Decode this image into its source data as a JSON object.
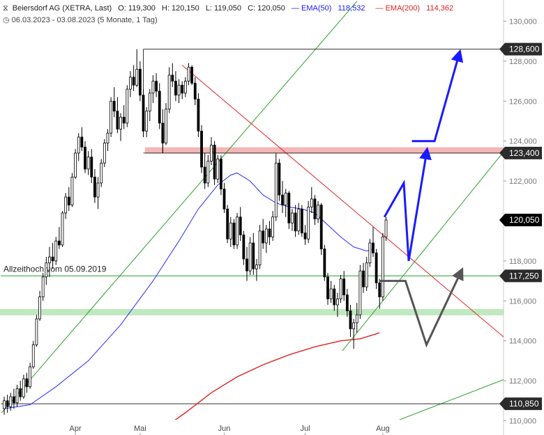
{
  "header": {
    "symbol": "Beiersdorf AG (XETRA, Last)",
    "open": "O: 119,300",
    "high": "H: 120,150",
    "low": "L: 119,050",
    "close": "C: 120,050",
    "ema50_label": "EMA(50)",
    "ema50_value": "118,532",
    "ema200_label": "EMA(200)",
    "ema200_value": "114,362",
    "range": "06.03.2023 - 03.08.2023",
    "period": "(5 Monate, 1 Tag)"
  },
  "chart_data": {
    "type": "candlestick",
    "ylim": [
      109.6,
      131.0
    ],
    "y_ticks": [
      110,
      112,
      114,
      116,
      118,
      120,
      122,
      124,
      126,
      128,
      130
    ],
    "y_tick_labels": [
      "110,000",
      "112,000",
      "114,000",
      "116,000",
      "118,000",
      "120,000",
      "122,000",
      "124,000",
      "126,000",
      "128,000",
      "130,000"
    ],
    "x_labels": [
      {
        "label": "Apr",
        "date": "2023-04-03"
      },
      {
        "label": "Mai",
        "date": "2023-05-02"
      },
      {
        "label": "Jun",
        "date": "2023-06-01"
      },
      {
        "label": "Jul",
        "date": "2023-07-03"
      },
      {
        "label": "Aug",
        "date": "2023-08-01"
      }
    ],
    "price_levels": [
      {
        "value": 128.6,
        "label": "128,600",
        "style": "dark"
      },
      {
        "value": 123.4,
        "label": "123,400",
        "style": "dark"
      },
      {
        "value": 120.05,
        "label": "120,050",
        "style": "black"
      },
      {
        "value": 117.25,
        "label": "117,250",
        "style": "dark"
      },
      {
        "value": 110.85,
        "label": "110,850",
        "style": "dark"
      }
    ],
    "zones": [
      {
        "from": 123.25,
        "to": 123.55,
        "color": "#f4b6b6"
      },
      {
        "from": 115.15,
        "to": 115.45,
        "color": "#bfe9bf"
      }
    ],
    "annotations": [
      {
        "text": "Allzeithoch vom 05.09.2019",
        "value": 117.25
      }
    ],
    "candles": [
      [
        110.6,
        111.2,
        110.3,
        111.0
      ],
      [
        111.0,
        111.3,
        110.4,
        110.7
      ],
      [
        110.7,
        111.4,
        110.5,
        111.2
      ],
      [
        111.2,
        111.6,
        110.6,
        110.9
      ],
      [
        110.9,
        111.8,
        110.7,
        111.6
      ],
      [
        111.6,
        112.0,
        111.0,
        111.2
      ],
      [
        111.2,
        112.3,
        111.1,
        112.1
      ],
      [
        112.1,
        112.4,
        111.4,
        111.7
      ],
      [
        111.7,
        112.9,
        111.6,
        112.7
      ],
      [
        112.7,
        114.0,
        112.6,
        113.8
      ],
      [
        113.8,
        115.3,
        113.7,
        115.1
      ],
      [
        115.1,
        116.5,
        115.0,
        116.2
      ],
      [
        116.2,
        117.4,
        116.0,
        117.2
      ],
      [
        117.2,
        118.2,
        116.8,
        117.9
      ],
      [
        117.9,
        118.7,
        117.2,
        118.2
      ],
      [
        118.2,
        118.9,
        117.6,
        118.0
      ],
      [
        118.0,
        119.2,
        117.8,
        119.0
      ],
      [
        119.0,
        119.7,
        118.6,
        118.8
      ],
      [
        118.8,
        120.5,
        118.7,
        120.4
      ],
      [
        120.4,
        121.4,
        120.1,
        121.2
      ],
      [
        121.2,
        121.7,
        120.5,
        120.8
      ],
      [
        120.8,
        122.4,
        120.7,
        122.2
      ],
      [
        122.2,
        123.6,
        122.1,
        123.4
      ],
      [
        123.4,
        124.4,
        123.0,
        124.2
      ],
      [
        124.2,
        124.7,
        123.5,
        123.7
      ],
      [
        123.7,
        124.0,
        122.4,
        122.6
      ],
      [
        122.6,
        123.5,
        122.3,
        123.2
      ],
      [
        123.2,
        123.6,
        121.9,
        122.2
      ],
      [
        122.2,
        122.6,
        120.9,
        121.2
      ],
      [
        121.2,
        122.2,
        120.6,
        121.9
      ],
      [
        121.9,
        123.1,
        121.7,
        122.9
      ],
      [
        122.9,
        124.1,
        122.7,
        123.9
      ],
      [
        123.9,
        124.6,
        123.5,
        124.4
      ],
      [
        124.4,
        126.2,
        124.2,
        126.0
      ],
      [
        126.0,
        126.7,
        125.2,
        125.5
      ],
      [
        125.5,
        126.2,
        124.4,
        124.6
      ],
      [
        124.6,
        125.4,
        124.0,
        125.2
      ],
      [
        125.2,
        125.8,
        124.6,
        124.9
      ],
      [
        124.9,
        126.8,
        124.7,
        126.6
      ],
      [
        126.6,
        127.5,
        126.2,
        127.2
      ],
      [
        127.2,
        127.8,
        126.5,
        126.8
      ],
      [
        126.8,
        128.6,
        126.7,
        127.6
      ],
      [
        127.6,
        128.0,
        126.0,
        126.3
      ],
      [
        126.3,
        126.6,
        124.2,
        124.5
      ],
      [
        124.5,
        125.7,
        124.2,
        125.5
      ],
      [
        125.5,
        126.6,
        125.0,
        126.4
      ],
      [
        126.4,
        127.3,
        125.9,
        127.0
      ],
      [
        127.0,
        127.4,
        126.2,
        126.5
      ],
      [
        126.5,
        126.9,
        124.6,
        124.9
      ],
      [
        124.9,
        125.6,
        123.4,
        123.9
      ],
      [
        123.9,
        125.9,
        123.8,
        125.6
      ],
      [
        125.6,
        127.7,
        125.4,
        127.3
      ],
      [
        127.3,
        127.9,
        126.7,
        127.0
      ],
      [
        127.0,
        127.5,
        126.0,
        126.3
      ],
      [
        126.3,
        127.1,
        125.9,
        126.8
      ],
      [
        126.8,
        127.0,
        126.1,
        126.4
      ],
      [
        126.4,
        127.2,
        126.2,
        127.0
      ],
      [
        127.0,
        127.9,
        126.8,
        127.7
      ],
      [
        127.7,
        127.8,
        126.8,
        126.9
      ],
      [
        126.9,
        127.2,
        125.8,
        126.1
      ],
      [
        126.1,
        126.4,
        124.2,
        124.5
      ],
      [
        124.5,
        124.8,
        122.4,
        122.7
      ],
      [
        122.7,
        123.4,
        121.6,
        121.9
      ],
      [
        121.9,
        123.3,
        121.7,
        123.0
      ],
      [
        123.0,
        124.2,
        122.8,
        123.8
      ],
      [
        123.8,
        124.0,
        121.8,
        122.1
      ],
      [
        122.1,
        123.3,
        121.9,
        123.1
      ],
      [
        123.1,
        123.3,
        121.3,
        121.6
      ],
      [
        121.6,
        121.9,
        120.4,
        120.6
      ],
      [
        120.6,
        120.8,
        118.9,
        119.1
      ],
      [
        119.1,
        120.2,
        118.7,
        119.9
      ],
      [
        119.9,
        120.1,
        118.6,
        118.8
      ],
      [
        118.8,
        120.4,
        118.6,
        120.2
      ],
      [
        120.2,
        120.7,
        119.0,
        119.3
      ],
      [
        119.3,
        119.5,
        117.8,
        118.1
      ],
      [
        118.1,
        118.7,
        117.0,
        117.5
      ],
      [
        117.5,
        119.2,
        117.3,
        118.9
      ],
      [
        118.9,
        119.4,
        117.3,
        117.6
      ],
      [
        117.6,
        118.1,
        117.0,
        117.8
      ],
      [
        117.8,
        119.8,
        117.6,
        119.5
      ],
      [
        119.5,
        120.1,
        118.6,
        118.9
      ],
      [
        118.9,
        119.8,
        118.4,
        119.6
      ],
      [
        119.6,
        120.0,
        118.8,
        119.2
      ],
      [
        119.2,
        120.5,
        119.0,
        120.2
      ],
      [
        120.2,
        123.4,
        120.0,
        122.9
      ],
      [
        122.9,
        123.1,
        121.0,
        121.3
      ],
      [
        121.3,
        122.0,
        120.4,
        120.8
      ],
      [
        120.8,
        121.6,
        120.2,
        121.4
      ],
      [
        121.4,
        121.5,
        119.6,
        119.9
      ],
      [
        119.9,
        120.6,
        119.5,
        120.4
      ],
      [
        120.4,
        120.8,
        119.2,
        119.5
      ],
      [
        119.5,
        120.9,
        119.3,
        120.6
      ],
      [
        120.6,
        120.8,
        119.2,
        119.4
      ],
      [
        119.4,
        119.8,
        118.8,
        119.1
      ],
      [
        119.1,
        121.0,
        118.9,
        120.7
      ],
      [
        120.7,
        121.7,
        120.4,
        121.1
      ],
      [
        121.1,
        121.3,
        119.8,
        120.1
      ],
      [
        120.1,
        121.0,
        119.9,
        120.8
      ],
      [
        120.8,
        120.9,
        118.3,
        118.6
      ],
      [
        118.6,
        118.8,
        117.0,
        117.2
      ],
      [
        117.2,
        117.4,
        115.8,
        116.1
      ],
      [
        116.1,
        117.0,
        115.9,
        116.6
      ],
      [
        116.6,
        116.8,
        115.5,
        115.8
      ],
      [
        115.8,
        116.4,
        115.2,
        116.1
      ],
      [
        116.1,
        117.3,
        115.9,
        117.1
      ],
      [
        117.1,
        117.5,
        116.0,
        116.3
      ],
      [
        116.3,
        116.6,
        115.2,
        115.5
      ],
      [
        115.5,
        115.8,
        114.2,
        114.6
      ],
      [
        114.6,
        115.1,
        113.6,
        114.9
      ],
      [
        114.9,
        115.9,
        114.4,
        115.3
      ],
      [
        115.3,
        117.8,
        115.1,
        117.5
      ],
      [
        117.5,
        117.9,
        116.4,
        116.7
      ],
      [
        116.7,
        118.2,
        116.5,
        117.9
      ],
      [
        117.9,
        119.1,
        117.7,
        118.9
      ],
      [
        118.9,
        119.7,
        118.2,
        118.4
      ],
      [
        118.4,
        118.6,
        116.6,
        116.9
      ],
      [
        116.9,
        117.1,
        115.6,
        116.2
      ],
      [
        116.2,
        119.4,
        116.0,
        119.2
      ],
      [
        119.2,
        120.2,
        119.0,
        120.05
      ]
    ],
    "ema50": [
      [
        0,
        110.6
      ],
      [
        8,
        110.8
      ],
      [
        16,
        111.7
      ],
      [
        26,
        113.0
      ],
      [
        36,
        114.8
      ],
      [
        46,
        117.0
      ],
      [
        54,
        119.0
      ],
      [
        60,
        120.6
      ],
      [
        66,
        121.8
      ],
      [
        70,
        122.3
      ],
      [
        72,
        122.4
      ],
      [
        76,
        122.0
      ],
      [
        80,
        121.3
      ],
      [
        84,
        120.9
      ],
      [
        88,
        120.7
      ],
      [
        92,
        120.6
      ],
      [
        96,
        120.4
      ],
      [
        100,
        119.8
      ],
      [
        104,
        119.2
      ],
      [
        108,
        118.7
      ],
      [
        112,
        118.5
      ],
      [
        114,
        118.6
      ]
    ],
    "ema200": [
      [
        49,
        109.6
      ],
      [
        56,
        110.4
      ],
      [
        64,
        111.4
      ],
      [
        72,
        112.2
      ],
      [
        80,
        112.8
      ],
      [
        88,
        113.3
      ],
      [
        96,
        113.7
      ],
      [
        104,
        114.0
      ],
      [
        110,
        114.1
      ],
      [
        116,
        114.4
      ]
    ],
    "trendlines": [
      {
        "points": [
          [
            -0.8,
            110.4
          ],
          [
            109.0,
            131.0
          ]
        ],
        "color": "#2aa02a"
      },
      {
        "points": [
          [
            104.5,
            113.5
          ],
          [
            155.0,
            123.6
          ]
        ],
        "color": "#2aa02a"
      },
      {
        "points": [
          [
            115.0,
            109.6
          ],
          [
            155.0,
            112.1
          ]
        ],
        "color": "#2aa02a"
      },
      {
        "points": [
          [
            55.0,
            127.8
          ],
          [
            155.0,
            114.1
          ]
        ],
        "color": "#e02020"
      },
      {
        "points": [
          [
            43.0,
            128.6
          ],
          [
            155.0,
            128.6
          ]
        ],
        "color": "#333333"
      },
      {
        "points": [
          [
            43.0,
            123.4
          ],
          [
            155.0,
            123.4
          ]
        ],
        "color": "#333333"
      },
      {
        "points": [
          [
            -1.0,
            110.85
          ],
          [
            155.0,
            110.85
          ]
        ],
        "color": "#333333"
      },
      {
        "points": [
          [
            -1.0,
            117.25
          ],
          [
            155.0,
            117.25
          ]
        ],
        "color": "#2aa02a"
      }
    ],
    "scenario_arrows": [
      {
        "points": [
          [
            117.5,
            120.2
          ],
          [
            123.5,
            121.9
          ],
          [
            125.0,
            118.0
          ],
          [
            130.5,
            123.4
          ]
        ],
        "color": "#1a1aff"
      },
      {
        "points": [
          [
            126.0,
            124.0
          ],
          [
            133.0,
            124.0
          ],
          [
            140.5,
            128.3
          ]
        ],
        "color": "#1a1aff"
      },
      {
        "points": [
          [
            116.0,
            117.0
          ],
          [
            124.0,
            117.0
          ],
          [
            130.5,
            113.8
          ],
          [
            141.0,
            117.4
          ]
        ],
        "color": "#555555"
      }
    ]
  }
}
